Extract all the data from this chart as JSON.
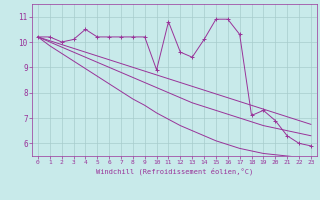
{
  "xlabel": "Windchill (Refroidissement éolien,°C)",
  "hours": [
    0,
    1,
    2,
    3,
    4,
    5,
    6,
    7,
    8,
    9,
    10,
    11,
    12,
    13,
    14,
    15,
    16,
    17,
    18,
    19,
    20,
    21,
    22,
    23
  ],
  "windchill": [
    10.2,
    10.2,
    10.0,
    10.1,
    10.5,
    10.2,
    10.2,
    10.2,
    10.2,
    10.2,
    8.9,
    10.8,
    9.6,
    9.4,
    10.1,
    10.9,
    10.9,
    10.3,
    7.1,
    7.3,
    6.9,
    6.3,
    6.0,
    5.9
  ],
  "trend1": [
    10.2,
    9.85,
    9.55,
    9.25,
    8.95,
    8.65,
    8.35,
    8.05,
    7.75,
    7.5,
    7.2,
    6.95,
    6.7,
    6.5,
    6.3,
    6.1,
    5.95,
    5.8,
    5.7,
    5.6,
    5.55,
    5.5,
    5.45,
    5.4
  ],
  "trend2": [
    10.2,
    10.0,
    9.8,
    9.6,
    9.4,
    9.2,
    9.0,
    8.8,
    8.6,
    8.4,
    8.2,
    8.0,
    7.8,
    7.6,
    7.45,
    7.3,
    7.15,
    7.0,
    6.85,
    6.7,
    6.6,
    6.5,
    6.4,
    6.3
  ],
  "trend3": [
    10.2,
    10.05,
    9.9,
    9.75,
    9.6,
    9.45,
    9.3,
    9.15,
    9.0,
    8.85,
    8.7,
    8.55,
    8.4,
    8.25,
    8.1,
    7.95,
    7.8,
    7.65,
    7.5,
    7.35,
    7.2,
    7.05,
    6.9,
    6.75
  ],
  "line_color": "#993399",
  "bg_color": "#c8eaea",
  "grid_color": "#a8cccc",
  "ylim": [
    5.5,
    11.5
  ],
  "yticks": [
    6,
    7,
    8,
    9,
    10,
    11
  ],
  "xlim": [
    -0.5,
    23.5
  ]
}
